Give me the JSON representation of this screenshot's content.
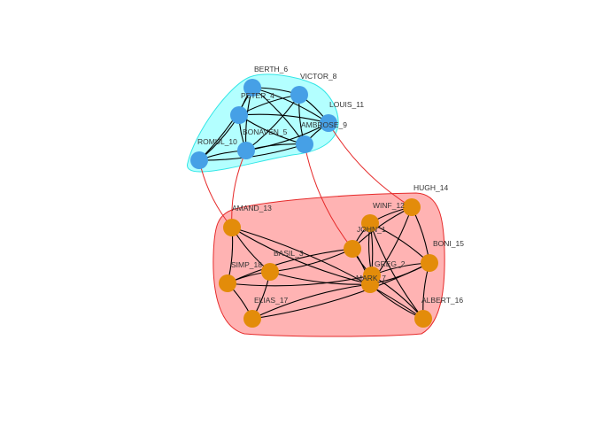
{
  "groups": [
    {
      "id": "blue",
      "fill": "#b3ffff",
      "stroke": "#33e6e6",
      "node_color": "#46a0e6"
    },
    {
      "id": "red",
      "fill": "#ffb3b3",
      "stroke": "#e62b2b",
      "node_color": "#e38c0a"
    }
  ],
  "nodes": [
    {
      "id": "BERTH_6",
      "label": "BERTH_6",
      "group": "blue"
    },
    {
      "id": "VICTOR_8",
      "label": "VICTOR_8",
      "group": "blue"
    },
    {
      "id": "PETER_4",
      "label": "PETER_4",
      "group": "blue"
    },
    {
      "id": "LOUIS_11",
      "label": "LOUIS_11",
      "group": "blue"
    },
    {
      "id": "AMBROSE_9",
      "label": "AMBROSE_9",
      "group": "blue"
    },
    {
      "id": "BONAVEN_5",
      "label": "BONAVEN_5",
      "group": "blue"
    },
    {
      "id": "ROMUL_10",
      "label": "ROMUL_10",
      "group": "blue"
    },
    {
      "id": "AMAND_13",
      "label": "AMAND_13",
      "group": "red"
    },
    {
      "id": "HUGH_14",
      "label": "HUGH_14",
      "group": "red"
    },
    {
      "id": "WINF_12",
      "label": "WINF_12",
      "group": "red"
    },
    {
      "id": "JOHN_1",
      "label": "JOHN_1",
      "group": "red"
    },
    {
      "id": "BONI_15",
      "label": "BONI_15",
      "group": "red"
    },
    {
      "id": "BASIL_3",
      "label": "BASIL_3",
      "group": "red"
    },
    {
      "id": "SIMP_18",
      "label": "SIMP_18",
      "group": "red"
    },
    {
      "id": "GREG_2",
      "label": "GREG_2",
      "group": "red"
    },
    {
      "id": "MARK_7",
      "label": "MARK_7",
      "group": "red"
    },
    {
      "id": "ELIAS_17",
      "label": "ELIAS_17",
      "group": "red"
    },
    {
      "id": "ALBERT_16",
      "label": "ALBERT_16",
      "group": "red"
    }
  ],
  "edges": [
    [
      "BERTH_6",
      "VICTOR_8"
    ],
    [
      "BERTH_6",
      "PETER_4"
    ],
    [
      "BERTH_6",
      "AMBROSE_9"
    ],
    [
      "BERTH_6",
      "BONAVEN_5"
    ],
    [
      "BERTH_6",
      "LOUIS_11"
    ],
    [
      "VICTOR_8",
      "PETER_4"
    ],
    [
      "VICTOR_8",
      "LOUIS_11"
    ],
    [
      "VICTOR_8",
      "AMBROSE_9"
    ],
    [
      "VICTOR_8",
      "BONAVEN_5"
    ],
    [
      "PETER_4",
      "BONAVEN_5"
    ],
    [
      "PETER_4",
      "ROMUL_10"
    ],
    [
      "PETER_4",
      "AMBROSE_9"
    ],
    [
      "PETER_4",
      "LOUIS_11"
    ],
    [
      "LOUIS_11",
      "AMBROSE_9"
    ],
    [
      "LOUIS_11",
      "BONAVEN_5"
    ],
    [
      "AMBROSE_9",
      "BONAVEN_5"
    ],
    [
      "AMBROSE_9",
      "ROMUL_10"
    ],
    [
      "BONAVEN_5",
      "ROMUL_10"
    ],
    [
      "BERTH_6",
      "ROMUL_10"
    ],
    [
      "ROMUL_10",
      "AMAND_13"
    ],
    [
      "BONAVEN_5",
      "AMAND_13"
    ],
    [
      "AMBROSE_9",
      "JOHN_1"
    ],
    [
      "LOUIS_11",
      "HUGH_14"
    ],
    [
      "AMAND_13",
      "BASIL_3"
    ],
    [
      "AMAND_13",
      "SIMP_18"
    ],
    [
      "AMAND_13",
      "MARK_7"
    ],
    [
      "AMAND_13",
      "ALBERT_16"
    ],
    [
      "HUGH_14",
      "WINF_12"
    ],
    [
      "HUGH_14",
      "BONI_15"
    ],
    [
      "HUGH_14",
      "JOHN_1"
    ],
    [
      "HUGH_14",
      "MARK_7"
    ],
    [
      "WINF_12",
      "JOHN_1"
    ],
    [
      "WINF_12",
      "BONI_15"
    ],
    [
      "WINF_12",
      "GREG_2"
    ],
    [
      "WINF_12",
      "MARK_7"
    ],
    [
      "WINF_12",
      "ALBERT_16"
    ],
    [
      "JOHN_1",
      "BASIL_3"
    ],
    [
      "JOHN_1",
      "GREG_2"
    ],
    [
      "JOHN_1",
      "MARK_7"
    ],
    [
      "BONI_15",
      "ALBERT_16"
    ],
    [
      "BONI_15",
      "MARK_7"
    ],
    [
      "BONI_15",
      "GREG_2"
    ],
    [
      "BONI_15",
      "ELIAS_17"
    ],
    [
      "BASIL_3",
      "SIMP_18"
    ],
    [
      "BASIL_3",
      "ELIAS_17"
    ],
    [
      "BASIL_3",
      "MARK_7"
    ],
    [
      "SIMP_18",
      "ELIAS_17"
    ],
    [
      "SIMP_18",
      "GREG_2"
    ],
    [
      "SIMP_18",
      "JOHN_1"
    ],
    [
      "GREG_2",
      "MARK_7"
    ],
    [
      "GREG_2",
      "ALBERT_16"
    ],
    [
      "MARK_7",
      "ALBERT_16"
    ],
    [
      "ELIAS_17",
      "MARK_7"
    ]
  ]
}
